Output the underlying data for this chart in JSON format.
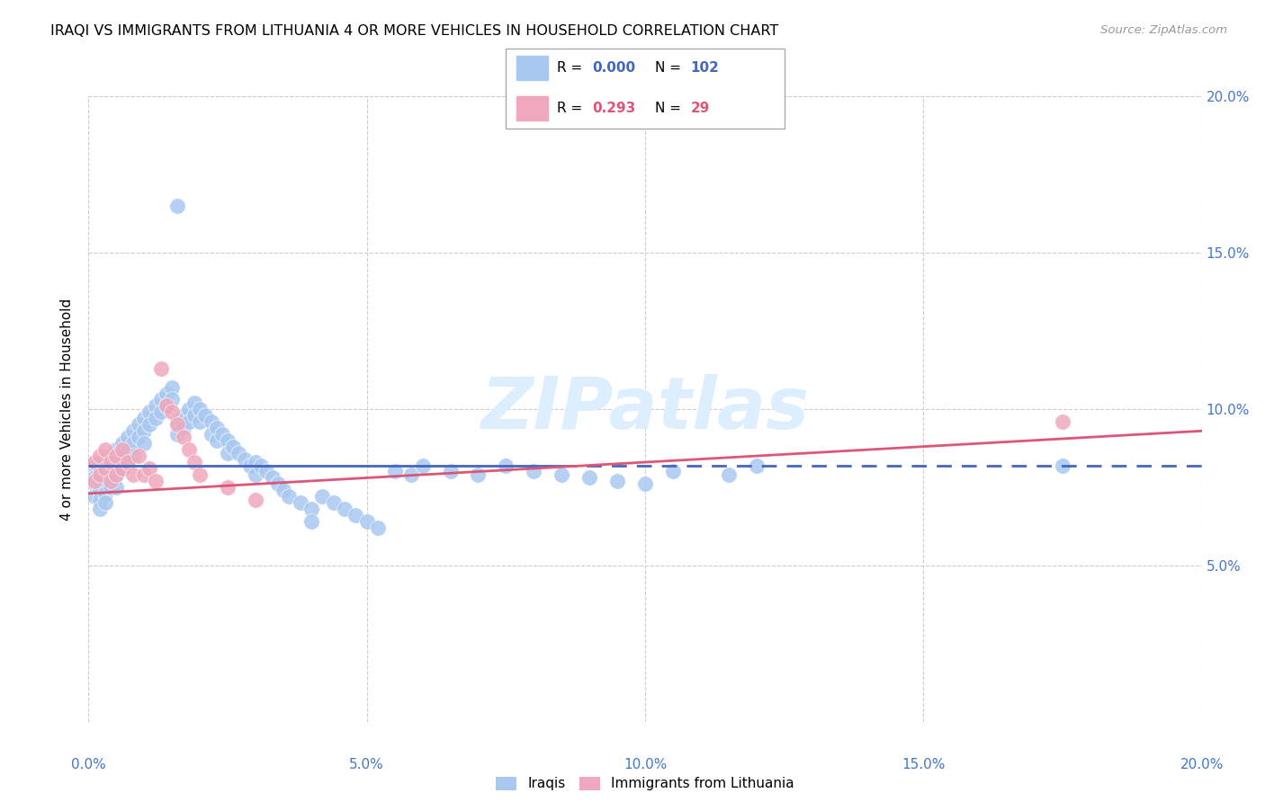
{
  "title": "IRAQI VS IMMIGRANTS FROM LITHUANIA 4 OR MORE VEHICLES IN HOUSEHOLD CORRELATION CHART",
  "source": "Source: ZipAtlas.com",
  "ylabel": "4 or more Vehicles in Household",
  "xlim": [
    0.0,
    0.2
  ],
  "ylim": [
    0.0,
    0.2
  ],
  "xtick_vals": [
    0.0,
    0.05,
    0.1,
    0.15,
    0.2
  ],
  "xtick_labels": [
    "0.0%",
    "5.0%",
    "10.0%",
    "15.0%",
    "20.0%"
  ],
  "ytick_vals": [
    0.0,
    0.05,
    0.1,
    0.15,
    0.2
  ],
  "ytick_labels_right": [
    "",
    "5.0%",
    "10.0%",
    "15.0%",
    "20.0%"
  ],
  "iraqis_color": "#a8c8f0",
  "lithuania_color": "#f0a8bc",
  "iraqis_line_color": "#4466bb",
  "lithuania_line_color": "#dd5577",
  "watermark_color": "#ddeeff",
  "iraqi_line_y": 0.082,
  "lith_line_y0": 0.073,
  "lith_line_y1": 0.093,
  "iraqis_x": [
    0.001,
    0.001,
    0.001,
    0.001,
    0.002,
    0.002,
    0.002,
    0.002,
    0.002,
    0.002,
    0.003,
    0.003,
    0.003,
    0.003,
    0.003,
    0.004,
    0.004,
    0.004,
    0.004,
    0.005,
    0.005,
    0.005,
    0.005,
    0.006,
    0.006,
    0.006,
    0.007,
    0.007,
    0.007,
    0.008,
    0.008,
    0.008,
    0.009,
    0.009,
    0.01,
    0.01,
    0.01,
    0.011,
    0.011,
    0.012,
    0.012,
    0.013,
    0.013,
    0.014,
    0.014,
    0.015,
    0.015,
    0.016,
    0.016,
    0.017,
    0.017,
    0.018,
    0.018,
    0.019,
    0.019,
    0.02,
    0.02,
    0.021,
    0.022,
    0.022,
    0.023,
    0.023,
    0.024,
    0.025,
    0.025,
    0.026,
    0.027,
    0.028,
    0.029,
    0.03,
    0.03,
    0.031,
    0.032,
    0.033,
    0.034,
    0.035,
    0.036,
    0.038,
    0.04,
    0.04,
    0.042,
    0.044,
    0.046,
    0.048,
    0.05,
    0.052,
    0.055,
    0.058,
    0.06,
    0.065,
    0.07,
    0.075,
    0.08,
    0.085,
    0.09,
    0.095,
    0.1,
    0.105,
    0.115,
    0.016,
    0.12,
    0.175
  ],
  "iraqis_y": [
    0.082,
    0.078,
    0.076,
    0.072,
    0.082,
    0.079,
    0.077,
    0.074,
    0.071,
    0.068,
    0.083,
    0.08,
    0.077,
    0.073,
    0.07,
    0.085,
    0.082,
    0.079,
    0.075,
    0.087,
    0.083,
    0.079,
    0.075,
    0.089,
    0.085,
    0.081,
    0.091,
    0.087,
    0.083,
    0.093,
    0.089,
    0.085,
    0.095,
    0.091,
    0.097,
    0.093,
    0.089,
    0.099,
    0.095,
    0.101,
    0.097,
    0.103,
    0.099,
    0.105,
    0.101,
    0.107,
    0.103,
    0.096,
    0.092,
    0.098,
    0.094,
    0.1,
    0.096,
    0.102,
    0.098,
    0.1,
    0.096,
    0.098,
    0.096,
    0.092,
    0.094,
    0.09,
    0.092,
    0.09,
    0.086,
    0.088,
    0.086,
    0.084,
    0.082,
    0.083,
    0.079,
    0.082,
    0.08,
    0.078,
    0.076,
    0.074,
    0.072,
    0.07,
    0.068,
    0.064,
    0.072,
    0.07,
    0.068,
    0.066,
    0.064,
    0.062,
    0.08,
    0.079,
    0.082,
    0.08,
    0.079,
    0.082,
    0.08,
    0.079,
    0.078,
    0.077,
    0.076,
    0.08,
    0.079,
    0.165,
    0.082,
    0.082
  ],
  "lith_x": [
    0.001,
    0.001,
    0.002,
    0.002,
    0.003,
    0.003,
    0.004,
    0.004,
    0.005,
    0.005,
    0.006,
    0.006,
    0.007,
    0.008,
    0.009,
    0.01,
    0.011,
    0.012,
    0.013,
    0.014,
    0.015,
    0.016,
    0.017,
    0.018,
    0.019,
    0.02,
    0.025,
    0.03,
    0.175
  ],
  "lith_y": [
    0.083,
    0.077,
    0.085,
    0.079,
    0.087,
    0.081,
    0.083,
    0.077,
    0.085,
    0.079,
    0.087,
    0.081,
    0.083,
    0.079,
    0.085,
    0.079,
    0.081,
    0.077,
    0.113,
    0.101,
    0.099,
    0.095,
    0.091,
    0.087,
    0.083,
    0.079,
    0.075,
    0.071,
    0.096
  ]
}
